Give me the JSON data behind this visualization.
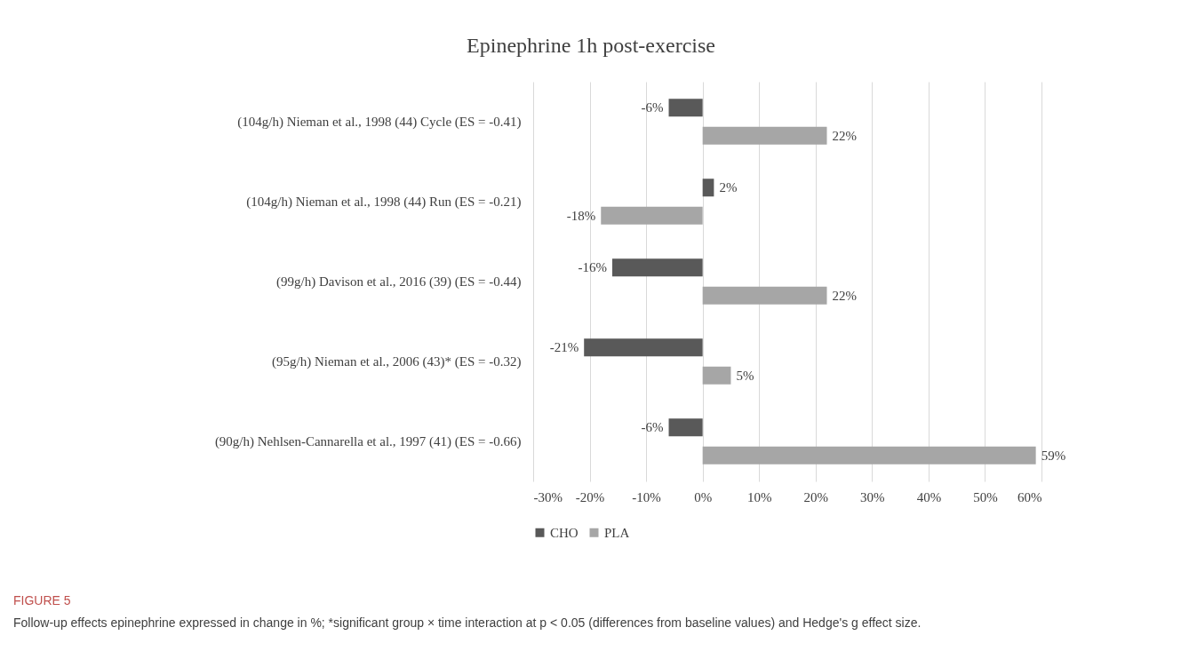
{
  "chart_data": {
    "type": "bar",
    "orientation": "horizontal",
    "title": "Epinephrine 1h post-exercise",
    "categories": [
      "(104g/h) Nieman et al., 1998 (44) Cycle (ES = -0.41)",
      "(104g/h) Nieman et al., 1998 (44) Run (ES = -0.21)",
      "(99g/h) Davison et al., 2016 (39) (ES = -0.44)",
      "(95g/h) Nieman et al., 2006 (43)* (ES = -0.32)",
      "(90g/h) Nehlsen-Cannarella et al., 1997 (41) (ES = -0.66)"
    ],
    "series": [
      {
        "name": "CHO",
        "color": "#595959",
        "values": [
          -6,
          2,
          -16,
          -21,
          -6
        ],
        "value_labels": [
          "-6%",
          "2%",
          "-16%",
          "-21%",
          "-6%"
        ]
      },
      {
        "name": "PLA",
        "color": "#a6a6a6",
        "values": [
          22,
          -18,
          22,
          5,
          59
        ],
        "value_labels": [
          "22%",
          "-18%",
          "22%",
          "5%",
          "59%"
        ]
      }
    ],
    "xlim": [
      -30,
      60
    ],
    "xticks": [
      {
        "value": -30,
        "label": "-30%"
      },
      {
        "value": -20,
        "label": "-20%"
      },
      {
        "value": -10,
        "label": "-10%"
      },
      {
        "value": 0,
        "label": "0%"
      },
      {
        "value": 10,
        "label": "10%"
      },
      {
        "value": 20,
        "label": "20%"
      },
      {
        "value": 30,
        "label": "30%"
      },
      {
        "value": 40,
        "label": "40%"
      },
      {
        "value": 50,
        "label": "50%"
      },
      {
        "value": 60,
        "label": "60%"
      }
    ],
    "grid": "x",
    "legend": "bottom",
    "annotations": [
      "FIGURE 5",
      "Follow-up effects epinephrine expressed in change in %; *significant group × time interaction at p < 0.05 (differences from baseline values) and Hedge's g effect size."
    ]
  }
}
